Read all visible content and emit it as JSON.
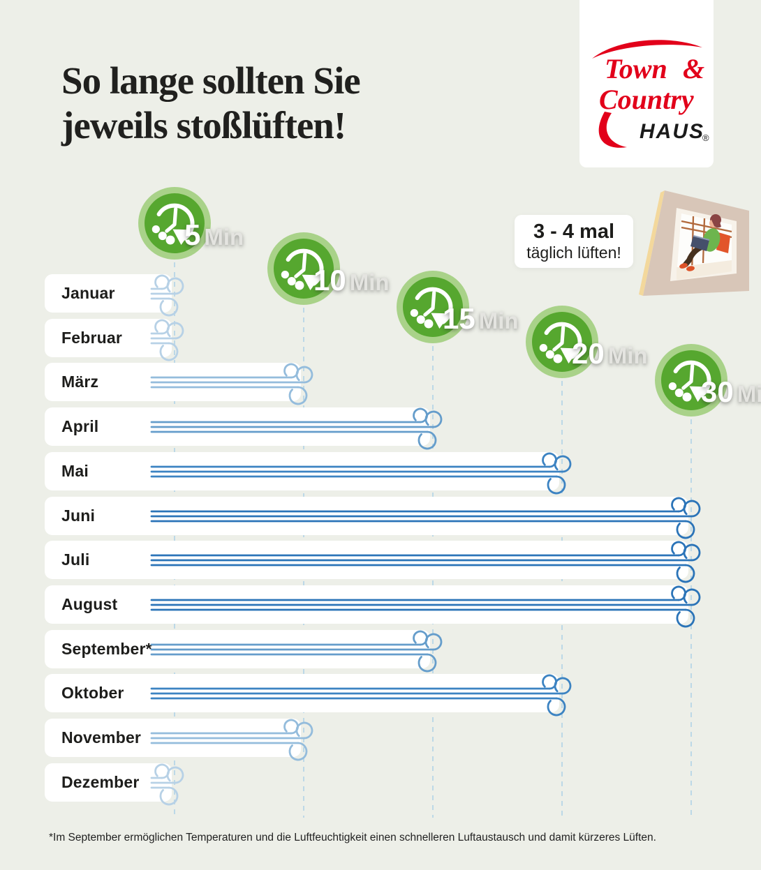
{
  "title": {
    "line1": "So lange sollten Sie",
    "line2": "jeweils stoßlüften!"
  },
  "logo": {
    "word1": "Town",
    "amp": "&",
    "word2": "Country",
    "word3": "HAUS",
    "registered": "®"
  },
  "info_box": {
    "line1": "3 - 4 mal",
    "line2": "täglich lüften!"
  },
  "footnote": "*Im September ermöglichen Temperaturen und die Luftfeuchtigkeit einen schnelleren Luftaustausch und damit kürzeres Lüften.",
  "duration_markers": [
    {
      "value": "5",
      "unit": "Min",
      "minutes": 5
    },
    {
      "value": "10",
      "unit": "Min",
      "minutes": 10
    },
    {
      "value": "15",
      "unit": "Min",
      "minutes": 15
    },
    {
      "value": "20",
      "unit": "Min",
      "minutes": 20
    },
    {
      "value": "30",
      "unit": "Min",
      "minutes": 30
    }
  ],
  "months": [
    {
      "label": "Januar",
      "minutes": 5
    },
    {
      "label": "Februar",
      "minutes": 5
    },
    {
      "label": "März",
      "minutes": 10
    },
    {
      "label": "April",
      "minutes": 15
    },
    {
      "label": "Mai",
      "minutes": 20
    },
    {
      "label": "Juni",
      "minutes": 30
    },
    {
      "label": "Juli",
      "minutes": 30
    },
    {
      "label": "August",
      "minutes": 30
    },
    {
      "label": "September*",
      "minutes": 15
    },
    {
      "label": "Oktober",
      "minutes": 20
    },
    {
      "label": "November",
      "minutes": 10
    },
    {
      "label": "Dezember",
      "minutes": 5
    }
  ],
  "colors": {
    "background": "#edefe8",
    "clock_green_inner": "#56a72f",
    "clock_green_outer": "#a9d289",
    "logo_red": "#e2001a",
    "text_dark": "#1d1d1b",
    "dashed_line": "#bcd8e7",
    "wind_by_minutes": {
      "5": "#b7d1e6",
      "10": "#94bcdc",
      "15": "#659dcb",
      "20": "#3c83c2",
      "30": "#2b74b8"
    }
  },
  "chart_data": {
    "type": "bar",
    "orientation": "horizontal",
    "title": "So lange sollten Sie jeweils stoßlüften!",
    "categories": [
      "Januar",
      "Februar",
      "März",
      "April",
      "Mai",
      "Juni",
      "Juli",
      "August",
      "September*",
      "Oktober",
      "November",
      "Dezember"
    ],
    "values": [
      5,
      5,
      10,
      15,
      20,
      30,
      30,
      30,
      15,
      20,
      10,
      5
    ],
    "unit": "Min",
    "x_ticks": [
      5,
      10,
      15,
      20,
      30
    ],
    "xlim": [
      0,
      30
    ],
    "grid": "dashed vertical at each duration marker",
    "legend": false,
    "annotations": [
      "3 - 4 mal täglich lüften!",
      "*Im September ermöglichen Temperaturen und die Luftfeuchtigkeit einen schnelleren Luftaustausch und damit kürzeres Lüften."
    ]
  }
}
